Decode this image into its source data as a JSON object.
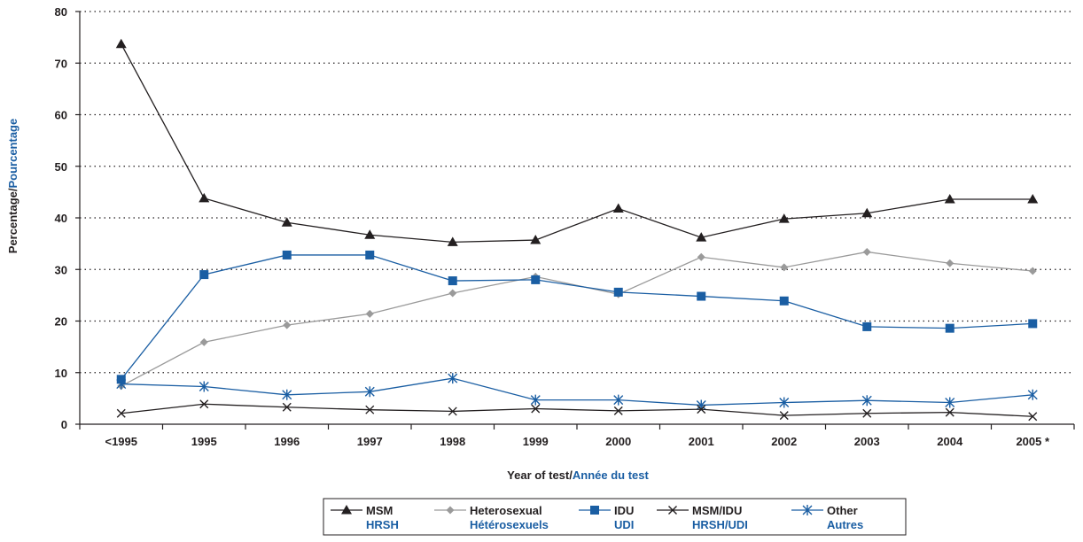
{
  "chart_data": {
    "type": "line",
    "title": "",
    "xlabel": "Year of test/",
    "xlabel_fr": "Année du test",
    "ylabel": "Percentage/",
    "ylabel_fr": "Pourcentage",
    "ylim": [
      0,
      80
    ],
    "yticks": [
      0,
      10,
      20,
      30,
      40,
      50,
      60,
      70,
      80
    ],
    "categories": [
      "<1995",
      "1995",
      "1996",
      "1997",
      "1998",
      "1999",
      "2000",
      "2001",
      "2002",
      "2003",
      "2004",
      "2005 *"
    ],
    "grid": "horizontal dotted",
    "legend_position": "bottom",
    "series": [
      {
        "name": "MSM",
        "name_fr": "HRSH",
        "color": "#231f20",
        "marker": "triangle",
        "values": [
          73.7,
          43.8,
          39.1,
          36.7,
          35.3,
          35.7,
          41.8,
          36.2,
          39.8,
          40.9,
          43.6,
          43.6
        ]
      },
      {
        "name": "Heterosexual",
        "name_fr": "Hétérosexuels",
        "color": "#9a9a9a",
        "marker": "diamond",
        "values": [
          7.4,
          15.9,
          19.2,
          21.4,
          25.4,
          28.6,
          25.2,
          32.4,
          30.4,
          33.4,
          31.2,
          29.7
        ]
      },
      {
        "name": "IDU",
        "name_fr": "UDI",
        "color": "#1a5ea3",
        "marker": "square",
        "values": [
          8.7,
          29.0,
          32.8,
          32.8,
          27.8,
          28.0,
          25.6,
          24.8,
          23.9,
          18.9,
          18.6,
          19.5
        ]
      },
      {
        "name": "MSM/IDU",
        "name_fr": "HRSH/UDI",
        "color": "#231f20",
        "marker": "x",
        "values": [
          2.1,
          3.9,
          3.3,
          2.8,
          2.5,
          3.0,
          2.6,
          2.9,
          1.7,
          2.1,
          2.3,
          1.5
        ]
      },
      {
        "name": "Other",
        "name_fr": "Autres",
        "color": "#1a5ea3",
        "marker": "asterisk",
        "values": [
          7.8,
          7.3,
          5.7,
          6.3,
          8.9,
          4.7,
          4.7,
          3.7,
          4.2,
          4.6,
          4.2,
          5.7
        ]
      }
    ]
  },
  "colors": {
    "axis": "#231f20",
    "grid": "#231f20",
    "french_text": "#1a5ea3"
  }
}
